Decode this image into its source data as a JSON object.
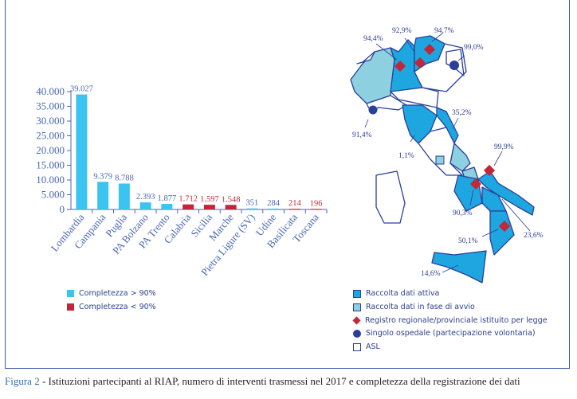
{
  "chart_data": {
    "type": "bar",
    "categories": [
      "Lombardia",
      "Campania",
      "Puglia",
      "PA Bolzano",
      "PA Trento",
      "Calabria",
      "Sicilia",
      "Marche",
      "Pietra Ligure (SV)",
      "Udine",
      "Basilicata",
      "Toscana"
    ],
    "values": [
      39027,
      9379,
      8788,
      2393,
      1877,
      1712,
      1597,
      1548,
      351,
      284,
      214,
      196
    ],
    "value_labels": [
      "39.027",
      "9.379",
      "8.788",
      "2.393",
      "1.877",
      "1.712",
      "1.597",
      "1.548",
      "351",
      "284",
      "214",
      "196"
    ],
    "completeness_over_90": [
      true,
      true,
      true,
      true,
      true,
      false,
      false,
      false,
      true,
      true,
      false,
      false
    ],
    "yticks": [
      0,
      5000,
      10000,
      15000,
      20000,
      25000,
      30000,
      35000,
      40000
    ],
    "ytick_labels": [
      "0",
      "5.000",
      "10.000",
      "15.000",
      "20.000",
      "25.000",
      "30.000",
      "35.000",
      "40.000"
    ],
    "ylim": [
      0,
      40000
    ],
    "legend": [
      {
        "label": "Completezza > 90%",
        "color": "#3bc4f0"
      },
      {
        "label": "Completezza < 90%",
        "color": "#c0283a"
      }
    ]
  },
  "map": {
    "percent_labels": [
      "94,4%",
      "92,9%",
      "94,7%",
      "99,0%",
      "91,4%",
      "35,2%",
      "1,1%",
      "99,9%",
      "90,3%",
      "23,6%",
      "50,1%",
      "14,6%"
    ],
    "legend": [
      {
        "label": "Raccolta dati attiva",
        "color": "#1ea6e0"
      },
      {
        "label": "Raccolta dati in fase di avvio",
        "color": "#8dd0e0"
      },
      {
        "label": "Registro regionale/provinciale istituito per legge",
        "color": "#c0283a"
      },
      {
        "label": "Singolo ospedale (partecipazione volontaria)",
        "color": "#2a3f9a"
      },
      {
        "label": "ASL",
        "color": "#2a3f9a"
      }
    ]
  },
  "caption": {
    "prefix": "Figura 2",
    "text": " - Istituzioni partecipanti al RIAP, numero di interventi trasmessi nel 2017 e completezza della registrazione dei dati"
  }
}
